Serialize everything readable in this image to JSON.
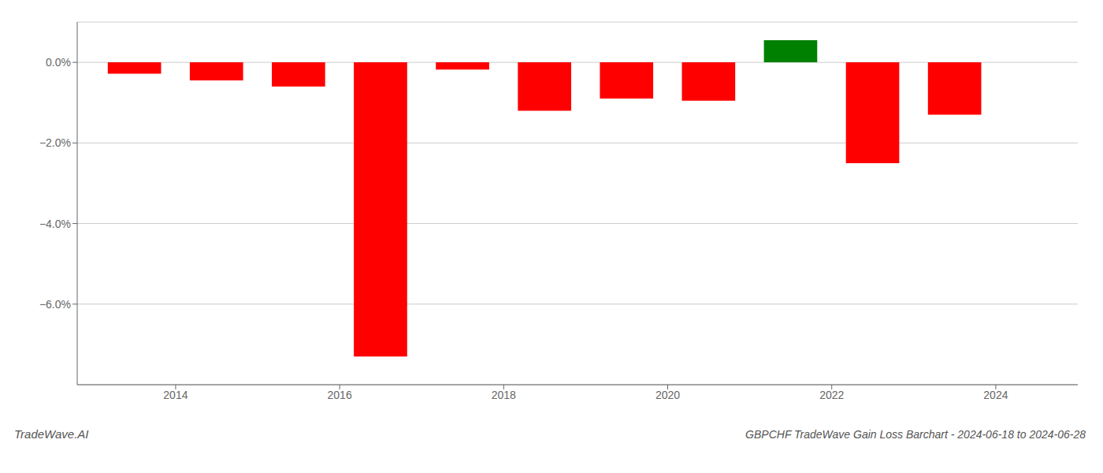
{
  "chart_data": {
    "type": "bar",
    "title": "GBPCHF TradeWave Gain Loss Barchart - 2024-06-18 to 2024-06-28",
    "annotations": [
      "TradeWave.AI"
    ],
    "x": [
      2013.5,
      2014.5,
      2015.5,
      2016.5,
      2017.5,
      2018.5,
      2019.5,
      2020.5,
      2021.5,
      2022.5,
      2023.5
    ],
    "values": [
      -0.0028,
      -0.0045,
      -0.006,
      -0.073,
      -0.0018,
      -0.012,
      -0.009,
      -0.0095,
      0.0055,
      -0.025,
      -0.013
    ],
    "colors": [
      "#ff0000",
      "#ff0000",
      "#ff0000",
      "#ff0000",
      "#ff0000",
      "#ff0000",
      "#ff0000",
      "#ff0000",
      "#008000",
      "#ff0000",
      "#ff0000"
    ],
    "xlim": [
      2012.8,
      2025.0
    ],
    "xticks": [
      2014,
      2016,
      2018,
      2020,
      2022,
      2024
    ],
    "ylim": [
      -0.08,
      0.01
    ],
    "yticks": [
      {
        "value": 0.0,
        "label": "0.0%"
      },
      {
        "value": -0.02,
        "label": "−2.0%"
      },
      {
        "value": -0.04,
        "label": "−4.0%"
      },
      {
        "value": -0.06,
        "label": "−6.0%"
      }
    ],
    "grid": true
  }
}
